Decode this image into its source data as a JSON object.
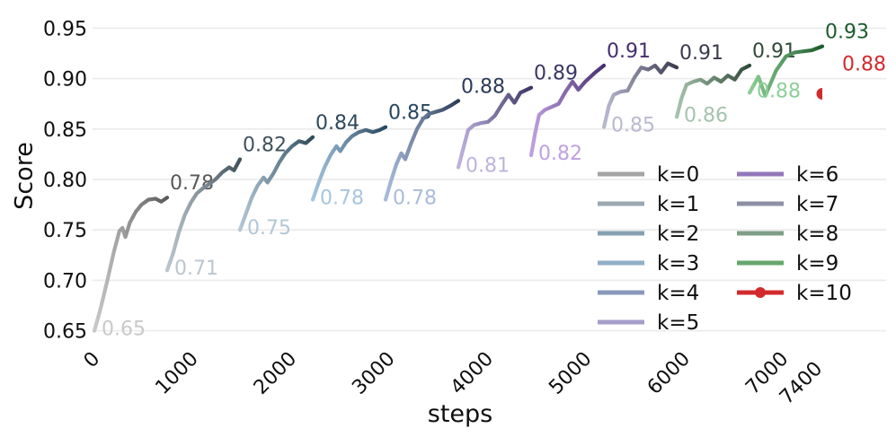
{
  "chart_data": {
    "type": "line",
    "title": "",
    "xlabel": "steps",
    "ylabel": "Score",
    "xlim": [
      0,
      8050
    ],
    "ylim": [
      0.64,
      0.96
    ],
    "x_ticks": [
      {
        "label": "0",
        "value": 0
      },
      {
        "label": "1000",
        "value": 1000
      },
      {
        "label": "2000",
        "value": 2000
      },
      {
        "label": "3000",
        "value": 3000
      },
      {
        "label": "4000",
        "value": 4000
      },
      {
        "label": "5000",
        "value": 5000
      },
      {
        "label": "6000",
        "value": 6000
      },
      {
        "label": "7000",
        "value": 7000
      },
      {
        "label": "7400",
        "value": 7400
      }
    ],
    "y_ticks": [
      0.65,
      0.7,
      0.75,
      0.8,
      0.85,
      0.9,
      0.95
    ],
    "grid": "horizontal",
    "legend": {
      "position": "lower-right-inside",
      "columns": 2,
      "frame": false,
      "entries": [
        "k=0",
        "k=1",
        "k=2",
        "k=3",
        "k=4",
        "k=5",
        "k=6",
        "k=7",
        "k=8",
        "k=9",
        "k=10"
      ]
    },
    "style": {
      "background": "#ffffff",
      "grid_color": "#ececec",
      "tick_color": "#0f0f0f"
    },
    "series": [
      {
        "name": "k=0",
        "start_label": "0.65",
        "end_label": "0.78",
        "color_light": "#c9c9c9",
        "color_dark": "#595959",
        "legend_color": "#a5a5a5",
        "points": [
          [
            0,
            0.65
          ],
          [
            60,
            0.671
          ],
          [
            130,
            0.699
          ],
          [
            200,
            0.729
          ],
          [
            255,
            0.749
          ],
          [
            285,
            0.752
          ],
          [
            315,
            0.743
          ],
          [
            360,
            0.757
          ],
          [
            420,
            0.768
          ],
          [
            480,
            0.775
          ],
          [
            550,
            0.78
          ],
          [
            620,
            0.781
          ],
          [
            680,
            0.778
          ],
          [
            740,
            0.782
          ]
        ]
      },
      {
        "name": "k=1",
        "start_label": "0.71",
        "end_label": "0.82",
        "color_light": "#bcc6cd",
        "color_dark": "#40525d",
        "legend_color": "#9ba8b0",
        "points": [
          [
            740,
            0.71
          ],
          [
            800,
            0.727
          ],
          [
            860,
            0.748
          ],
          [
            920,
            0.765
          ],
          [
            980,
            0.777
          ],
          [
            1040,
            0.786
          ],
          [
            1100,
            0.791
          ],
          [
            1160,
            0.795
          ],
          [
            1230,
            0.8
          ],
          [
            1300,
            0.807
          ],
          [
            1370,
            0.812
          ],
          [
            1420,
            0.809
          ],
          [
            1480,
            0.82
          ]
        ]
      },
      {
        "name": "k=2",
        "start_label": "0.75",
        "end_label": "0.84",
        "color_light": "#b2c7d7",
        "color_dark": "#2e4a5c",
        "legend_color": "#87a0b2",
        "points": [
          [
            1480,
            0.75
          ],
          [
            1540,
            0.766
          ],
          [
            1600,
            0.782
          ],
          [
            1660,
            0.794
          ],
          [
            1720,
            0.802
          ],
          [
            1760,
            0.797
          ],
          [
            1820,
            0.806
          ],
          [
            1880,
            0.817
          ],
          [
            1940,
            0.826
          ],
          [
            2010,
            0.833
          ],
          [
            2080,
            0.838
          ],
          [
            2150,
            0.836
          ],
          [
            2220,
            0.842
          ]
        ]
      },
      {
        "name": "k=3",
        "start_label": "0.78",
        "end_label": "0.85",
        "color_light": "#a6c6df",
        "color_dark": "#28465f",
        "legend_color": "#90aec7",
        "points": [
          [
            2220,
            0.78
          ],
          [
            2280,
            0.797
          ],
          [
            2340,
            0.812
          ],
          [
            2400,
            0.824
          ],
          [
            2460,
            0.833
          ],
          [
            2500,
            0.828
          ],
          [
            2560,
            0.837
          ],
          [
            2620,
            0.843
          ],
          [
            2690,
            0.847
          ],
          [
            2760,
            0.849
          ],
          [
            2830,
            0.847
          ],
          [
            2900,
            0.849
          ],
          [
            2960,
            0.852
          ]
        ]
      },
      {
        "name": "k=4",
        "start_label": "0.78",
        "end_label": "0.88",
        "color_light": "#a9bcda",
        "color_dark": "#2c3c59",
        "legend_color": "#8898bb",
        "points": [
          [
            2960,
            0.78
          ],
          [
            3010,
            0.797
          ],
          [
            3070,
            0.815
          ],
          [
            3120,
            0.826
          ],
          [
            3160,
            0.82
          ],
          [
            3220,
            0.836
          ],
          [
            3280,
            0.85
          ],
          [
            3340,
            0.86
          ],
          [
            3400,
            0.865
          ],
          [
            3470,
            0.867
          ],
          [
            3540,
            0.869
          ],
          [
            3620,
            0.873
          ],
          [
            3700,
            0.878
          ]
        ]
      },
      {
        "name": "k=5",
        "start_label": "0.81",
        "end_label": "0.89",
        "color_light": "#bfb3de",
        "color_dark": "#3b3764",
        "legend_color": "#a69eca",
        "points": [
          [
            3700,
            0.812
          ],
          [
            3750,
            0.831
          ],
          [
            3800,
            0.849
          ],
          [
            3860,
            0.854
          ],
          [
            3930,
            0.856
          ],
          [
            4000,
            0.857
          ],
          [
            4070,
            0.863
          ],
          [
            4140,
            0.874
          ],
          [
            4210,
            0.884
          ],
          [
            4270,
            0.876
          ],
          [
            4330,
            0.886
          ],
          [
            4440,
            0.891
          ]
        ]
      },
      {
        "name": "k=6",
        "start_label": "0.82",
        "end_label": "0.91",
        "color_light": "#bfa1e0",
        "color_dark": "#452e6f",
        "legend_color": "#9277b9",
        "points": [
          [
            4440,
            0.824
          ],
          [
            4480,
            0.846
          ],
          [
            4520,
            0.864
          ],
          [
            4580,
            0.869
          ],
          [
            4650,
            0.872
          ],
          [
            4720,
            0.875
          ],
          [
            4790,
            0.887
          ],
          [
            4860,
            0.897
          ],
          [
            4920,
            0.889
          ],
          [
            4990,
            0.897
          ],
          [
            5090,
            0.906
          ],
          [
            5180,
            0.913
          ]
        ]
      },
      {
        "name": "k=7",
        "start_label": "0.85",
        "end_label": "0.91",
        "color_light": "#b9bad0",
        "color_dark": "#3a3b4f",
        "legend_color": "#8e8fa5",
        "points": [
          [
            5180,
            0.852
          ],
          [
            5230,
            0.873
          ],
          [
            5280,
            0.884
          ],
          [
            5350,
            0.887
          ],
          [
            5420,
            0.888
          ],
          [
            5490,
            0.901
          ],
          [
            5560,
            0.911
          ],
          [
            5630,
            0.909
          ],
          [
            5700,
            0.913
          ],
          [
            5760,
            0.906
          ],
          [
            5830,
            0.915
          ],
          [
            5920,
            0.911
          ]
        ]
      },
      {
        "name": "k=8",
        "start_label": "0.86",
        "end_label": "0.91",
        "color_light": "#a6c3ad",
        "color_dark": "#304a37",
        "legend_color": "#7f9d88",
        "points": [
          [
            5920,
            0.862
          ],
          [
            5970,
            0.881
          ],
          [
            6020,
            0.894
          ],
          [
            6090,
            0.897
          ],
          [
            6160,
            0.899
          ],
          [
            6230,
            0.895
          ],
          [
            6300,
            0.901
          ],
          [
            6370,
            0.897
          ],
          [
            6440,
            0.903
          ],
          [
            6510,
            0.899
          ],
          [
            6580,
            0.909
          ],
          [
            6660,
            0.913
          ]
        ]
      },
      {
        "name": "k=9",
        "start_label": "0.88",
        "end_label": "0.93",
        "color_light": "#8dcf96",
        "color_dark": "#1d5c2c",
        "legend_color": "#66a76d",
        "points": [
          [
            6660,
            0.886
          ],
          [
            6750,
            0.902
          ],
          [
            6820,
            0.883
          ],
          [
            6930,
            0.908
          ],
          [
            7030,
            0.922
          ],
          [
            7120,
            0.926
          ],
          [
            7200,
            0.927
          ],
          [
            7290,
            0.928
          ],
          [
            7400,
            0.932
          ]
        ]
      },
      {
        "name": "k=10",
        "marker": "circle",
        "start_label": null,
        "end_label": "0.88",
        "color_light": "#d22b2e",
        "color_dark": "#d22b2e",
        "legend_color": "#d22b2e",
        "points": [
          [
            7400,
            0.885
          ]
        ]
      }
    ]
  }
}
